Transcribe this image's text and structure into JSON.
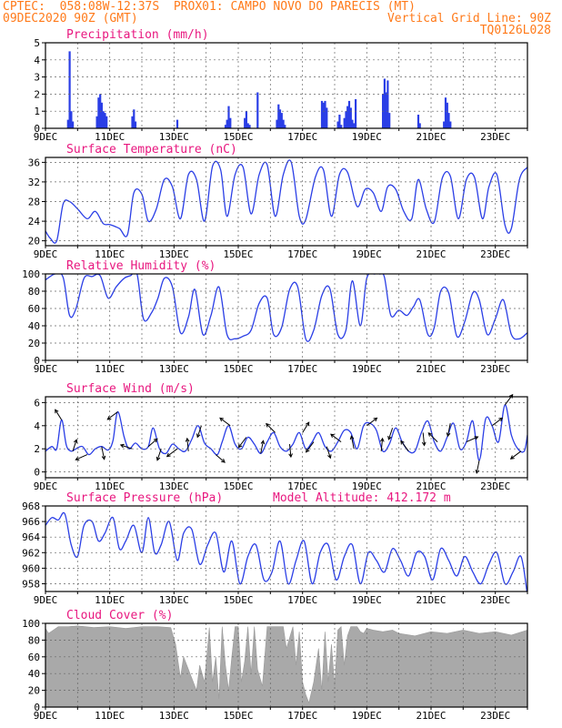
{
  "header": {
    "line1_left": "CPTEC:  058:08W-12:37S  PROX01: CAMPO NOVO DO PARECIS (MT)",
    "line2_left": "09DEC2020 90Z (GMT)",
    "line2_right": "Vertical Grid Line: 90Z",
    "line3_right": "TQ0126L028"
  },
  "colors": {
    "header": "#ff7a1a",
    "panel_title": "#e8177f",
    "series": "#2a3ee6",
    "cloud": "#a9a9a9",
    "arrows": "#000000"
  },
  "x_ticks": [
    "9DEC",
    "11DEC",
    "13DEC",
    "15DEC",
    "17DEC",
    "19DEC",
    "21DEC",
    "23DEC"
  ],
  "chart_data": [
    {
      "type": "bar",
      "title": "Precipitation (mm/h)",
      "ylim": [
        0,
        5
      ],
      "yticks": [
        0,
        1,
        2,
        3,
        4,
        5
      ],
      "x_range_days": [
        9,
        24
      ],
      "x": [
        9.7,
        9.75,
        9.8,
        9.85,
        10.6,
        10.65,
        10.7,
        10.75,
        10.8,
        10.85,
        10.9,
        11.7,
        11.75,
        11.8,
        13.1,
        14.6,
        14.65,
        14.7,
        14.75,
        15.2,
        15.25,
        15.3,
        15.35,
        15.6,
        16.2,
        16.25,
        16.3,
        16.35,
        16.4,
        16.45,
        17.6,
        17.65,
        17.7,
        17.75,
        18.1,
        18.15,
        18.2,
        18.3,
        18.35,
        18.4,
        18.45,
        18.5,
        18.55,
        18.6,
        18.65,
        19.5,
        19.55,
        19.6,
        19.65,
        19.7,
        20.6,
        20.65,
        21.4,
        21.45,
        21.5,
        21.55,
        21.6
      ],
      "values": [
        0.5,
        4.5,
        1.0,
        0.4,
        0.7,
        1.8,
        2.0,
        1.5,
        1.0,
        0.9,
        0.7,
        0.7,
        1.1,
        0.4,
        0.5,
        0.2,
        0.5,
        1.3,
        0.6,
        0.6,
        1.0,
        0.3,
        0.2,
        2.1,
        0.5,
        1.4,
        1.1,
        0.9,
        0.5,
        0.2,
        1.6,
        1.5,
        1.6,
        1.2,
        0.4,
        0.8,
        0.2,
        0.6,
        1.0,
        1.3,
        1.6,
        1.2,
        0.5,
        0.3,
        1.7,
        2.0,
        2.9,
        2.1,
        2.8,
        0.9,
        0.8,
        0.3,
        0.4,
        1.8,
        1.5,
        0.9,
        0.4
      ]
    },
    {
      "type": "line",
      "title": "Surface Temperature (nC)",
      "ylim": [
        19,
        37
      ],
      "yticks": [
        20,
        24,
        28,
        32,
        36
      ],
      "x_range_days": [
        9,
        24
      ],
      "series": [
        {
          "x": [
            9,
            9.15,
            9.35,
            9.55,
            9.75,
            10.0,
            10.3,
            10.55,
            10.8,
            11.0,
            11.3,
            11.55,
            11.75,
            12.0,
            12.2,
            12.45,
            12.7,
            12.95,
            13.2,
            13.45,
            13.7,
            13.95,
            14.2,
            14.45,
            14.65,
            14.9,
            15.15,
            15.4,
            15.65,
            15.9,
            16.15,
            16.4,
            16.65,
            16.9,
            17.1,
            17.4,
            17.65,
            17.9,
            18.15,
            18.4,
            18.7,
            18.95,
            19.2,
            19.45,
            19.65,
            19.9,
            20.15,
            20.4,
            20.6,
            20.85,
            21.1,
            21.35,
            21.6,
            21.85,
            22.1,
            22.35,
            22.6,
            22.8,
            23.05,
            23.3,
            23.5,
            23.75,
            24.0
          ],
          "values": [
            22,
            20.5,
            20,
            27.5,
            28,
            26.5,
            24.5,
            26,
            23.5,
            23.3,
            22.5,
            21.2,
            29.8,
            29.5,
            24,
            26.5,
            32.5,
            31,
            24.5,
            33.5,
            32.5,
            24,
            35.2,
            34.5,
            25,
            33.5,
            35,
            25.5,
            33.5,
            35.5,
            25,
            33.5,
            36,
            25,
            24.3,
            33,
            34.5,
            25,
            33.5,
            34,
            27,
            30.5,
            29.8,
            26,
            31,
            30.5,
            26,
            24.5,
            32.5,
            26.5,
            23.8,
            32.8,
            33.2,
            24.5,
            32.5,
            33,
            24.5,
            31,
            33.5,
            23.2,
            22.5,
            32.5,
            35
          ]
        }
      ]
    },
    {
      "type": "line",
      "title": "Relative Humidity (%)",
      "ylim": [
        0,
        100
      ],
      "yticks": [
        0,
        20,
        40,
        60,
        80,
        100
      ],
      "x_range_days": [
        9,
        24
      ],
      "series": [
        {
          "x": [
            9,
            9.3,
            9.55,
            9.75,
            9.95,
            10.2,
            10.45,
            10.7,
            10.95,
            11.2,
            11.45,
            11.65,
            11.85,
            12.05,
            12.3,
            12.5,
            12.7,
            12.95,
            13.2,
            13.45,
            13.65,
            13.9,
            14.15,
            14.4,
            14.65,
            14.9,
            15.15,
            15.4,
            15.65,
            15.9,
            16.1,
            16.35,
            16.6,
            16.85,
            17.1,
            17.35,
            17.6,
            17.85,
            18.1,
            18.35,
            18.55,
            18.8,
            19.0,
            19.25,
            19.4,
            19.55,
            19.75,
            20.0,
            20.25,
            20.45,
            20.65,
            20.9,
            21.1,
            21.3,
            21.55,
            21.8,
            22.05,
            22.3,
            22.5,
            22.75,
            23.0,
            23.25,
            23.5,
            23.75,
            24.0
          ],
          "values": [
            93,
            100,
            96,
            52,
            60,
            95,
            97,
            98,
            72,
            85,
            95,
            98,
            100,
            48,
            55,
            72,
            95,
            85,
            32,
            50,
            82,
            30,
            52,
            85,
            30,
            25,
            28,
            35,
            66,
            72,
            30,
            38,
            82,
            85,
            25,
            35,
            75,
            83,
            30,
            35,
            92,
            40,
            95,
            100,
            100,
            96,
            52,
            58,
            52,
            62,
            70,
            30,
            38,
            80,
            78,
            28,
            45,
            78,
            70,
            30,
            48,
            70,
            30,
            25,
            32
          ]
        }
      ]
    },
    {
      "type": "line",
      "title": "Surface Wind (m/s)",
      "ylim": [
        -0.5,
        6.5
      ],
      "yticks": [
        0,
        2,
        4,
        6
      ],
      "x_range_days": [
        9,
        24
      ],
      "series": [
        {
          "x": [
            9,
            9.2,
            9.35,
            9.5,
            9.65,
            9.8,
            9.95,
            10.15,
            10.35,
            10.55,
            10.75,
            10.95,
            11.1,
            11.25,
            11.45,
            11.6,
            11.8,
            12.0,
            12.2,
            12.35,
            12.55,
            12.75,
            12.95,
            13.15,
            13.35,
            13.55,
            13.75,
            13.95,
            14.15,
            14.35,
            14.5,
            14.7,
            14.9,
            15.1,
            15.3,
            15.5,
            15.7,
            15.9,
            16.1,
            16.3,
            16.5,
            16.7,
            16.9,
            17.1,
            17.3,
            17.5,
            17.7,
            17.9,
            18.1,
            18.3,
            18.5,
            18.7,
            18.9,
            19.1,
            19.3,
            19.5,
            19.7,
            19.9,
            20.1,
            20.3,
            20.5,
            20.7,
            20.9,
            21.1,
            21.3,
            21.5,
            21.7,
            21.9,
            22.1,
            22.3,
            22.5,
            22.7,
            22.9,
            23.1,
            23.3,
            23.5,
            23.7,
            23.9,
            24.0
          ],
          "values": [
            1.8,
            2.2,
            2.0,
            4.5,
            2.3,
            1.8,
            2.0,
            2.2,
            1.5,
            2.0,
            2.2,
            1.9,
            2.7,
            5.2,
            3.0,
            2.0,
            2.5,
            2.0,
            2.2,
            3.8,
            2.0,
            1.6,
            2.4,
            2.0,
            1.8,
            2.8,
            4.0,
            2.5,
            2.0,
            1.5,
            2.6,
            4.0,
            2.4,
            2.0,
            3.0,
            2.4,
            1.6,
            2.6,
            3.4,
            2.2,
            1.8,
            2.4,
            3.4,
            2.0,
            2.6,
            3.4,
            2.2,
            1.8,
            2.6,
            3.6,
            3.4,
            2.0,
            4.0,
            4.2,
            3.6,
            1.8,
            2.4,
            3.8,
            2.6,
            1.8,
            1.8,
            3.4,
            4.4,
            2.6,
            1.8,
            3.0,
            4.2,
            2.0,
            2.6,
            4.4,
            1.0,
            4.6,
            4.0,
            2.6,
            5.8,
            3.2,
            2.0,
            1.8,
            3.2
          ]
        }
      ],
      "wind_arrows": [
        {
          "day": 9.5,
          "dx": -0.5,
          "dy": 0.8
        },
        {
          "day": 9.85,
          "dx": 0.3,
          "dy": 0.9
        },
        {
          "day": 10.3,
          "dx": -0.9,
          "dy": -0.4
        },
        {
          "day": 10.75,
          "dx": 0.2,
          "dy": -1
        },
        {
          "day": 11.25,
          "dx": -0.8,
          "dy": -0.6
        },
        {
          "day": 11.7,
          "dx": -0.9,
          "dy": 0.3
        },
        {
          "day": 12.2,
          "dx": 0.7,
          "dy": 0.6
        },
        {
          "day": 12.6,
          "dx": -0.3,
          "dy": -0.9
        },
        {
          "day": 13.1,
          "dx": -0.8,
          "dy": -0.6
        },
        {
          "day": 13.45,
          "dx": -0.1,
          "dy": 1
        },
        {
          "day": 13.85,
          "dx": -0.3,
          "dy": -0.9
        },
        {
          "day": 14.3,
          "dx": 0.7,
          "dy": -0.6
        },
        {
          "day": 14.75,
          "dx": -0.8,
          "dy": 0.6
        },
        {
          "day": 15.25,
          "dx": -0.6,
          "dy": -0.8
        },
        {
          "day": 15.7,
          "dx": 0.2,
          "dy": 1
        },
        {
          "day": 16.15,
          "dx": -0.7,
          "dy": 0.7
        },
        {
          "day": 16.6,
          "dx": 0.1,
          "dy": -1
        },
        {
          "day": 17.0,
          "dx": 0.5,
          "dy": 0.8
        },
        {
          "day": 17.35,
          "dx": -0.6,
          "dy": -0.8
        },
        {
          "day": 17.75,
          "dx": 0.3,
          "dy": -0.9
        },
        {
          "day": 18.2,
          "dx": -0.8,
          "dy": 0.6
        },
        {
          "day": 18.6,
          "dx": -0.2,
          "dy": 1
        },
        {
          "day": 19.0,
          "dx": 0.8,
          "dy": 0.6
        },
        {
          "day": 19.45,
          "dx": 0.1,
          "dy": 1
        },
        {
          "day": 19.8,
          "dx": -0.3,
          "dy": -0.9
        },
        {
          "day": 20.3,
          "dx": -0.6,
          "dy": 0.8
        },
        {
          "day": 20.75,
          "dx": 0.1,
          "dy": -1
        },
        {
          "day": 21.2,
          "dx": -0.7,
          "dy": 0.7
        },
        {
          "day": 21.6,
          "dx": -0.2,
          "dy": -1
        },
        {
          "day": 22.1,
          "dx": 0.9,
          "dy": 0.4
        },
        {
          "day": 22.5,
          "dx": -0.2,
          "dy": -1
        },
        {
          "day": 22.9,
          "dx": 0.8,
          "dy": 0.6
        },
        {
          "day": 23.3,
          "dx": 0.6,
          "dy": 0.8
        },
        {
          "day": 23.8,
          "dx": -0.8,
          "dy": -0.6
        }
      ]
    },
    {
      "type": "line",
      "title": "Surface Pressure (hPa)",
      "subtitle": "Model Altitude: 412.172 m",
      "ylim": [
        957,
        968
      ],
      "yticks": [
        958,
        960,
        962,
        964,
        966,
        968
      ],
      "x_range_days": [
        9,
        24
      ],
      "series": [
        {
          "x": [
            9,
            9.2,
            9.4,
            9.6,
            9.8,
            10.0,
            10.2,
            10.45,
            10.65,
            10.85,
            11.1,
            11.3,
            11.5,
            11.75,
            12.0,
            12.2,
            12.4,
            12.6,
            12.85,
            13.1,
            13.3,
            13.55,
            13.8,
            14.05,
            14.3,
            14.55,
            14.8,
            15.05,
            15.3,
            15.55,
            15.8,
            16.05,
            16.3,
            16.55,
            16.8,
            17.05,
            17.3,
            17.55,
            17.8,
            18.05,
            18.3,
            18.55,
            18.8,
            19.05,
            19.3,
            19.55,
            19.8,
            20.05,
            20.3,
            20.55,
            20.8,
            21.05,
            21.3,
            21.55,
            21.8,
            22.05,
            22.3,
            22.55,
            22.8,
            23.05,
            23.3,
            23.55,
            23.8,
            24.0
          ],
          "values": [
            965.5,
            966.5,
            966.2,
            967.0,
            963.0,
            961.5,
            965.5,
            966.0,
            963.5,
            964.5,
            966.5,
            962.5,
            963.5,
            965.5,
            962.0,
            966.5,
            962.0,
            963.0,
            966.0,
            961.0,
            964.5,
            965.0,
            960.5,
            963.0,
            964.5,
            959.5,
            963.5,
            958.0,
            961.5,
            963.0,
            958.5,
            959.5,
            963.5,
            958.0,
            961.0,
            963.5,
            958.0,
            962.0,
            963.0,
            958.5,
            961.5,
            963.0,
            958.0,
            962.0,
            961.0,
            959.5,
            962.5,
            961.0,
            959.0,
            962.0,
            961.5,
            958.5,
            962.5,
            961.0,
            959.0,
            961.5,
            959.5,
            958.0,
            960.5,
            962.0,
            958.0,
            959.5,
            961.5,
            956.5
          ]
        }
      ]
    },
    {
      "type": "area",
      "title": "Cloud Cover (%)",
      "ylim": [
        0,
        100
      ],
      "yticks": [
        0,
        20,
        40,
        60,
        80,
        100
      ],
      "x_range_days": [
        9,
        24
      ],
      "series": [
        {
          "x": [
            9,
            9.1,
            9.4,
            9.7,
            10.0,
            10.5,
            11.0,
            11.5,
            12.0,
            12.5,
            12.9,
            13.05,
            13.2,
            13.3,
            13.5,
            13.7,
            13.8,
            13.95,
            14.1,
            14.2,
            14.3,
            14.4,
            14.5,
            14.6,
            14.7,
            14.8,
            14.9,
            15.0,
            15.1,
            15.2,
            15.3,
            15.4,
            15.5,
            15.6,
            15.75,
            15.9,
            16.0,
            16.2,
            16.4,
            16.5,
            16.7,
            16.8,
            16.9,
            17.0,
            17.1,
            17.2,
            17.35,
            17.5,
            17.6,
            17.7,
            17.8,
            17.9,
            18.0,
            18.1,
            18.2,
            18.3,
            18.4,
            18.5,
            18.6,
            18.7,
            18.8,
            18.9,
            19.0,
            19.2,
            19.5,
            19.8,
            20.0,
            20.5,
            21.0,
            21.5,
            22.0,
            22.5,
            23.0,
            23.5,
            24.0
          ],
          "values": [
            94,
            88,
            96,
            96,
            97,
            95,
            96,
            94,
            96,
            96,
            95,
            75,
            35,
            60,
            40,
            20,
            50,
            30,
            95,
            30,
            60,
            10,
            96,
            50,
            20,
            60,
            96,
            96,
            30,
            55,
            96,
            40,
            96,
            45,
            25,
            96,
            96,
            96,
            96,
            70,
            96,
            50,
            90,
            30,
            15,
            5,
            30,
            70,
            20,
            90,
            30,
            75,
            25,
            92,
            96,
            50,
            85,
            96,
            96,
            96,
            90,
            88,
            94,
            92,
            90,
            92,
            88,
            85,
            90,
            88,
            92,
            88,
            90,
            86,
            92
          ]
        }
      ]
    }
  ]
}
